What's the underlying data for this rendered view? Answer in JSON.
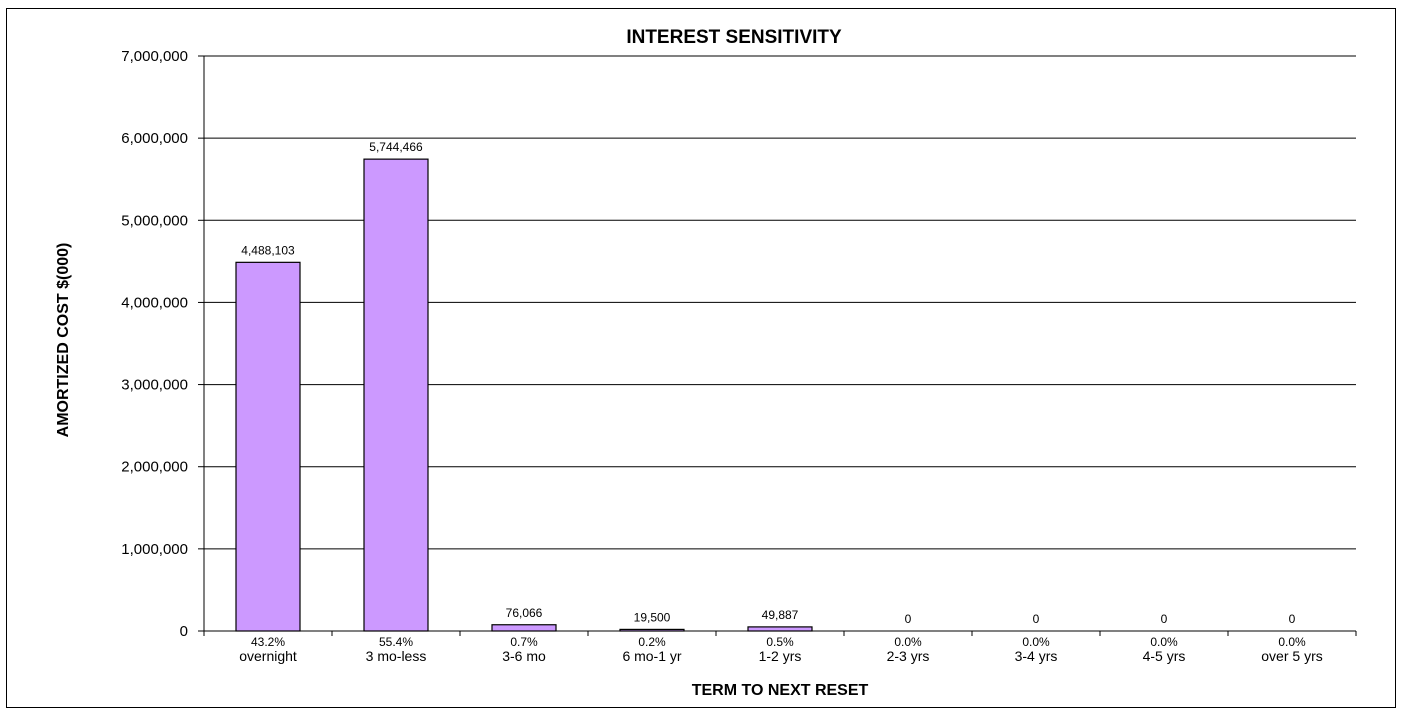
{
  "chart_data": {
    "type": "bar",
    "title": "INTEREST SENSITIVITY",
    "xlabel": "TERM TO NEXT RESET",
    "ylabel": "AMORTIZED COST $(000)",
    "ylim": [
      0,
      7000000
    ],
    "yticks": [
      "0",
      "1,000,000",
      "2,000,000",
      "3,000,000",
      "4,000,000",
      "5,000,000",
      "6,000,000",
      "7,000,000"
    ],
    "grid": true,
    "bar_color": "#cc99ff",
    "categories": [
      "overnight",
      "3 mo-less",
      "3-6 mo",
      "6 mo-1 yr",
      "1-2 yrs",
      "2-3 yrs",
      "3-4 yrs",
      "4-5 yrs",
      "over 5 yrs"
    ],
    "values": [
      4488103,
      5744466,
      76066,
      19500,
      49887,
      0,
      0,
      0,
      0
    ],
    "data_labels": [
      "4,488,103",
      "5,744,466",
      "76,066",
      "19,500",
      "49,887",
      "0",
      "0",
      "0",
      "0"
    ],
    "percent_labels": [
      "43.2%",
      "55.4%",
      "0.7%",
      "0.2%",
      "0.5%",
      "0.0%",
      "0.0%",
      "0.0%",
      "0.0%"
    ]
  }
}
